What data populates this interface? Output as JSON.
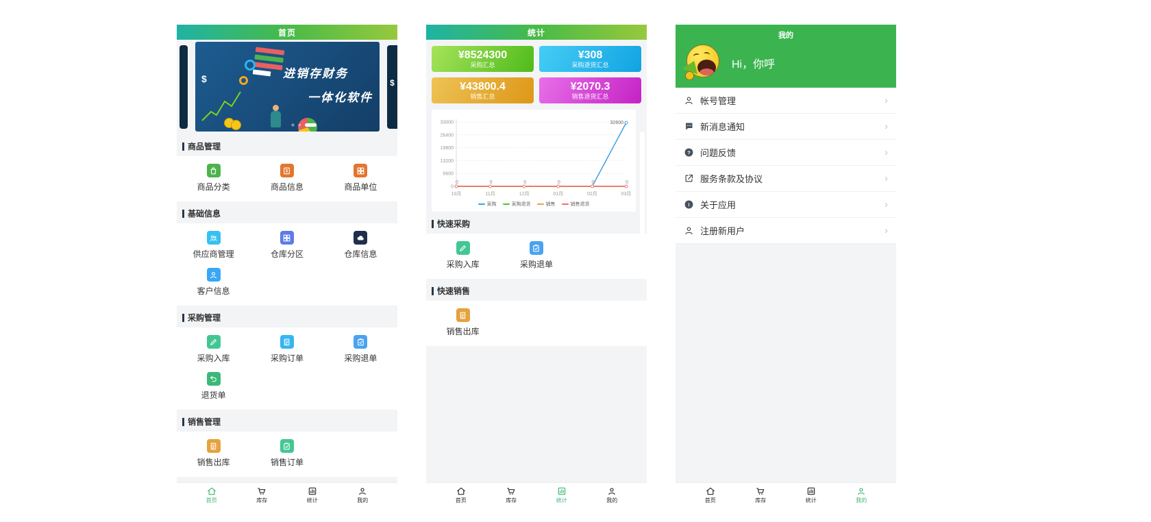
{
  "theme": {
    "navbar_gradient": [
      "#1fb3a5",
      "#48ba48",
      "#97c93c"
    ],
    "mine_header_green": "#3bb450",
    "active_tab_color": "#3eb575",
    "inactive_tab_color": "#2b2b2b",
    "page_background": "#f3f4f6",
    "card_background": "#ffffff"
  },
  "tabbar": {
    "items": [
      {
        "label": "首页",
        "icon": "home-icon"
      },
      {
        "label": "库存",
        "icon": "cart-icon"
      },
      {
        "label": "统计",
        "icon": "chart-icon"
      },
      {
        "label": "我的",
        "icon": "person-icon"
      }
    ]
  },
  "panels": {
    "home": {
      "title": "首页",
      "active_tab": 0,
      "banner": {
        "line1": "进销存财务",
        "line2": "一体化软件",
        "currency_symbol": "$"
      },
      "sections": [
        {
          "title": "商品管理",
          "items": [
            {
              "label": "商品分类",
              "icon": "bag-icon",
              "color": "#4db34d"
            },
            {
              "label": "商品信息",
              "icon": "dollar-doc-icon",
              "color": "#e2762f"
            },
            {
              "label": "商品单位",
              "icon": "grid-icon",
              "color": "#e2762f"
            }
          ]
        },
        {
          "title": "基础信息",
          "items": [
            {
              "label": "供应商管理",
              "icon": "people-icon",
              "color": "#35c1f1"
            },
            {
              "label": "仓库分区",
              "icon": "grid-icon",
              "color": "#5b7be8"
            },
            {
              "label": "仓库信息",
              "icon": "cloud-icon",
              "color": "#1f2f4d"
            },
            {
              "label": "客户信息",
              "icon": "person-icon",
              "color": "#3aa6f5"
            }
          ]
        },
        {
          "title": "采购管理",
          "items": [
            {
              "label": "采购入库",
              "icon": "pencil-icon",
              "color": "#42c793"
            },
            {
              "label": "采购订单",
              "icon": "doc-icon",
              "color": "#35b6f1"
            },
            {
              "label": "采购退单",
              "icon": "clipboard-icon",
              "color": "#4aa3f0"
            },
            {
              "label": "退货单",
              "icon": "return-icon",
              "color": "#3cb878"
            }
          ]
        },
        {
          "title": "销售管理",
          "items": [
            {
              "label": "销售出库",
              "icon": "doc-icon",
              "color": "#e6a23c"
            },
            {
              "label": "销售订单",
              "icon": "clipboard-icon",
              "color": "#42c793"
            }
          ]
        }
      ]
    },
    "stats": {
      "title": "统计",
      "active_tab": 2,
      "cards": [
        {
          "value": "¥8524300",
          "label": "采购汇总",
          "gradient": [
            "#a6e35b",
            "#4fbb1a"
          ]
        },
        {
          "value": "¥308",
          "label": "采购退货汇总",
          "gradient": [
            "#45cdf5",
            "#12a3e3"
          ]
        },
        {
          "value": "¥43800.4",
          "label": "销售汇总",
          "gradient": [
            "#eec355",
            "#dd9718"
          ]
        },
        {
          "value": "¥2070.3",
          "label": "销售退货汇总",
          "gradient": [
            "#e86fe8",
            "#c522c5"
          ]
        }
      ],
      "quick_sections": [
        {
          "title": "快速采购",
          "items": [
            {
              "label": "采购入库",
              "icon": "pencil-icon",
              "color": "#42c793"
            },
            {
              "label": "采购退单",
              "icon": "clipboard-icon",
              "color": "#4aa3f0"
            }
          ]
        },
        {
          "title": "快速销售",
          "items": [
            {
              "label": "销售出库",
              "icon": "doc-icon",
              "color": "#e6a23c"
            }
          ]
        }
      ]
    },
    "mine": {
      "title": "我的",
      "active_tab": 3,
      "greeting": "Hi，你呼",
      "menu": [
        {
          "label": "帐号管理",
          "icon": "person-icon"
        },
        {
          "label": "新消息通知",
          "icon": "chat-icon"
        },
        {
          "label": "问题反馈",
          "icon": "question-icon"
        },
        {
          "label": "服务条款及协议",
          "icon": "external-link-icon"
        },
        {
          "label": "关于应用",
          "icon": "info-icon"
        },
        {
          "label": "注册新用户",
          "icon": "person-icon"
        }
      ],
      "chevron": "›"
    }
  },
  "chart_data": {
    "type": "line",
    "x": [
      "10月",
      "11月",
      "12月",
      "01月",
      "02月",
      "03月"
    ],
    "series": [
      {
        "name": "采购",
        "color": "#3ba0e8",
        "values": [
          0,
          0,
          0,
          0,
          0,
          32600
        ]
      },
      {
        "name": "采购退货",
        "color": "#52c41a",
        "values": [
          0,
          0,
          0,
          0,
          0,
          0
        ]
      },
      {
        "name": "销售",
        "color": "#e6a23c",
        "values": [
          0,
          0,
          0,
          0,
          0,
          0
        ]
      },
      {
        "name": "销售退货",
        "color": "#f56c6c",
        "values": [
          0,
          0,
          0,
          0,
          0,
          0
        ]
      }
    ],
    "yticks": [
      0,
      6600,
      13200,
      19800,
      26400,
      33000
    ],
    "ylim": [
      0,
      33000
    ],
    "point_labels": [
      "0",
      "0",
      "0",
      "0",
      "0",
      "0"
    ],
    "peak_label": "32600",
    "grid": true,
    "legend_position": "bottom"
  }
}
